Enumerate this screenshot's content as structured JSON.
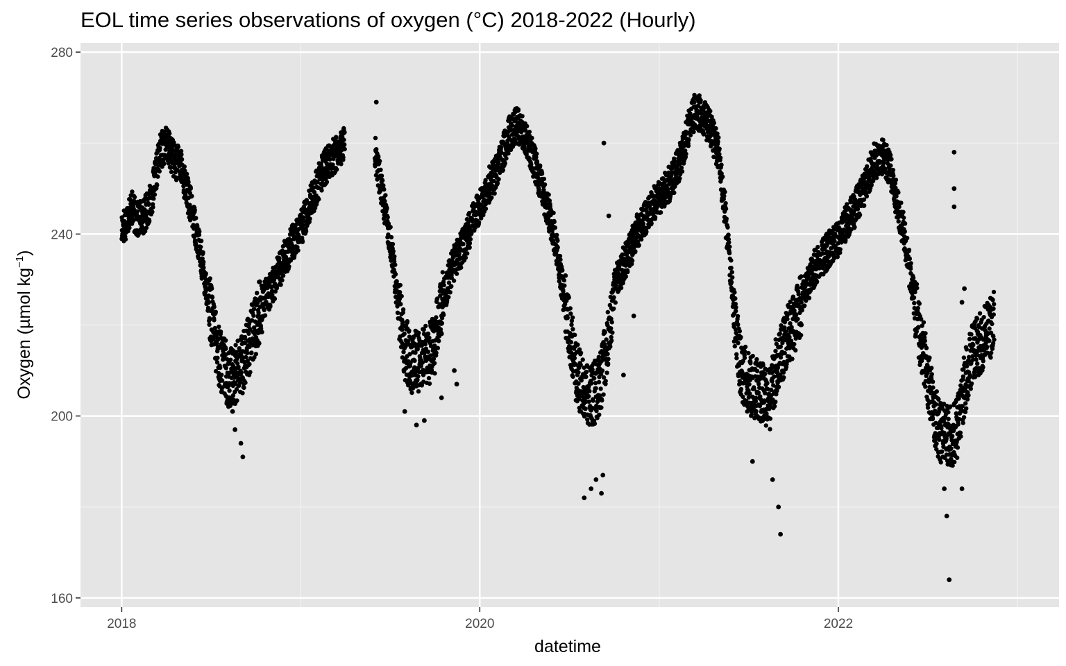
{
  "chart_data": {
    "type": "scatter",
    "title": "EOL time series observations of oxygen (°C) 2018-2022 (Hourly)",
    "xlabel": "datetime",
    "ylabel": "Oxygen (µmol kg",
    "ylabel_superscript": "−1",
    "ylabel_suffix": ")",
    "x_scale": "date",
    "xlim": [
      "2017-10-09",
      "2023-03-27"
    ],
    "ylim": [
      158,
      282
    ],
    "x_ticks": [
      "2018-01-01",
      "2020-01-01",
      "2022-01-01"
    ],
    "x_tick_labels": [
      "2018",
      "2020",
      "2022"
    ],
    "x_minor_ticks": [
      "2019-01-01",
      "2021-01-01",
      "2023-01-01"
    ],
    "y_ticks": [
      160,
      200,
      240,
      280
    ],
    "y_tick_labels": [
      "160",
      "200",
      "240",
      "280"
    ],
    "y_minor_ticks": [
      180,
      220,
      260
    ],
    "grid": true,
    "background": "#e5e5e5",
    "point_color": "#000000",
    "legend": "none",
    "series": [
      {
        "values": [
          [
            "2018-01-01",
            241.0
          ],
          [
            "2018-01-10",
            243.0
          ],
          [
            "2018-01-20",
            246.0
          ],
          [
            "2018-02-01",
            243.0
          ],
          [
            "2018-02-15",
            244.0
          ],
          [
            "2018-03-01",
            247.0
          ],
          [
            "2018-03-10",
            252.0
          ],
          [
            "2018-03-20",
            258.0
          ],
          [
            "2018-04-01",
            260.0
          ],
          [
            "2018-04-10",
            258.0
          ],
          [
            "2018-04-20",
            256.0
          ],
          [
            "2018-05-01",
            255.0
          ],
          [
            "2018-05-10",
            251.0
          ],
          [
            "2018-05-20",
            247.0
          ],
          [
            "2018-06-01",
            241.0
          ],
          [
            "2018-06-15",
            233.0
          ],
          [
            "2018-07-01",
            223.0
          ],
          [
            "2018-07-15",
            214.0
          ],
          [
            "2018-08-01",
            210.0
          ],
          [
            "2018-08-10",
            208.0
          ],
          [
            "2018-08-20",
            209.0
          ],
          [
            "2018-09-01",
            211.0
          ],
          [
            "2018-09-15",
            215.0
          ],
          [
            "2018-10-01",
            220.0
          ],
          [
            "2018-10-15",
            225.0
          ],
          [
            "2018-11-01",
            228.0
          ],
          [
            "2018-11-15",
            231.0
          ],
          [
            "2018-12-01",
            235.0
          ],
          [
            "2018-12-15",
            238.0
          ],
          [
            "2019-01-01",
            241.0
          ],
          [
            "2019-01-15",
            245.0
          ],
          [
            "2019-02-01",
            250.0
          ],
          [
            "2019-02-15",
            254.0
          ],
          [
            "2019-03-01",
            256.0
          ],
          [
            "2019-03-15",
            258.0
          ],
          [
            "2019-04-01",
            260.0
          ],
          [
            "2019-06-01",
            258.0
          ],
          [
            "2019-06-15",
            250.0
          ],
          [
            "2019-07-01",
            240.0
          ],
          [
            "2019-07-15",
            228.0
          ],
          [
            "2019-08-01",
            215.0
          ],
          [
            "2019-08-15",
            212.0
          ],
          [
            "2019-09-01",
            212.0
          ],
          [
            "2019-09-15",
            213.0
          ],
          [
            "2019-10-01",
            216.0
          ],
          [
            "2019-10-15",
            224.0
          ],
          [
            "2019-11-01",
            231.0
          ],
          [
            "2019-11-15",
            235.0
          ],
          [
            "2019-12-01",
            238.0
          ],
          [
            "2019-12-15",
            242.0
          ],
          [
            "2020-01-01",
            246.0
          ],
          [
            "2020-01-15",
            250.0
          ],
          [
            "2020-02-01",
            253.0
          ],
          [
            "2020-02-15",
            257.0
          ],
          [
            "2020-03-01",
            262.0
          ],
          [
            "2020-03-15",
            264.0
          ],
          [
            "2020-04-01",
            262.0
          ],
          [
            "2020-04-15",
            258.0
          ],
          [
            "2020-05-01",
            252.0
          ],
          [
            "2020-05-15",
            247.0
          ],
          [
            "2020-06-01",
            240.0
          ],
          [
            "2020-06-15",
            230.0
          ],
          [
            "2020-07-01",
            220.0
          ],
          [
            "2020-07-15",
            210.0
          ],
          [
            "2020-08-01",
            205.0
          ],
          [
            "2020-08-15",
            204.0
          ],
          [
            "2020-09-01",
            207.0
          ],
          [
            "2020-09-15",
            214.0
          ],
          [
            "2020-10-01",
            228.0
          ],
          [
            "2020-10-15",
            232.0
          ],
          [
            "2020-11-01",
            236.0
          ],
          [
            "2020-11-15",
            240.0
          ],
          [
            "2020-12-01",
            243.0
          ],
          [
            "2020-12-15",
            246.0
          ],
          [
            "2021-01-01",
            248.0
          ],
          [
            "2021-01-15",
            250.0
          ],
          [
            "2021-02-01",
            253.0
          ],
          [
            "2021-02-15",
            257.0
          ],
          [
            "2021-03-01",
            263.0
          ],
          [
            "2021-03-15",
            267.0
          ],
          [
            "2021-04-01",
            266.0
          ],
          [
            "2021-04-15",
            263.0
          ],
          [
            "2021-05-01",
            258.0
          ],
          [
            "2021-05-15",
            245.0
          ],
          [
            "2021-06-01",
            225.0
          ],
          [
            "2021-06-15",
            211.0
          ],
          [
            "2021-07-01",
            207.0
          ],
          [
            "2021-07-15",
            206.0
          ],
          [
            "2021-08-01",
            205.0
          ],
          [
            "2021-08-15",
            204.0
          ],
          [
            "2021-09-01",
            213.0
          ],
          [
            "2021-09-15",
            216.0
          ],
          [
            "2021-10-01",
            220.0
          ],
          [
            "2021-10-15",
            224.0
          ],
          [
            "2021-11-01",
            229.0
          ],
          [
            "2021-11-15",
            233.0
          ],
          [
            "2021-12-01",
            235.0
          ],
          [
            "2021-12-15",
            237.0
          ],
          [
            "2022-01-01",
            239.0
          ],
          [
            "2022-01-15",
            242.0
          ],
          [
            "2022-02-01",
            245.0
          ],
          [
            "2022-02-15",
            248.0
          ],
          [
            "2022-03-01",
            252.0
          ],
          [
            "2022-03-15",
            256.0
          ],
          [
            "2022-04-01",
            257.0
          ],
          [
            "2022-04-15",
            255.0
          ],
          [
            "2022-05-01",
            247.0
          ],
          [
            "2022-05-15",
            240.0
          ],
          [
            "2022-06-01",
            228.0
          ],
          [
            "2022-06-15",
            219.0
          ],
          [
            "2022-07-01",
            210.0
          ],
          [
            "2022-07-15",
            200.0
          ],
          [
            "2022-08-01",
            196.0
          ],
          [
            "2022-08-15",
            195.0
          ],
          [
            "2022-09-01",
            197.0
          ],
          [
            "2022-09-15",
            207.0
          ],
          [
            "2022-10-01",
            213.0
          ],
          [
            "2022-10-15",
            216.0
          ],
          [
            "2022-11-01",
            218.0
          ],
          [
            "2022-11-15",
            221.0
          ]
        ]
      }
    ],
    "outliers": [
      [
        "2018-08-15",
        201.0
      ],
      [
        "2018-08-20",
        197.0
      ],
      [
        "2018-09-05",
        191.0
      ],
      [
        "2018-09-01",
        194.0
      ],
      [
        "2019-06-04",
        269.0
      ],
      [
        "2019-08-01",
        201.0
      ],
      [
        "2019-08-25",
        198.0
      ],
      [
        "2019-09-10",
        199.0
      ],
      [
        "2019-10-15",
        204.0
      ],
      [
        "2019-11-10",
        210.0
      ],
      [
        "2019-11-15",
        207.0
      ],
      [
        "2020-08-01",
        182.0
      ],
      [
        "2020-08-15",
        184.0
      ],
      [
        "2020-08-25",
        186.0
      ],
      [
        "2020-09-05",
        183.0
      ],
      [
        "2020-09-08",
        187.0
      ],
      [
        "2020-09-10",
        260.0
      ],
      [
        "2020-09-20",
        244.0
      ],
      [
        "2020-10-20",
        209.0
      ],
      [
        "2020-11-10",
        222.0
      ],
      [
        "2021-09-01",
        180.0
      ],
      [
        "2021-09-05",
        174.0
      ],
      [
        "2021-08-20",
        186.0
      ],
      [
        "2021-07-10",
        190.0
      ],
      [
        "2022-08-10",
        178.0
      ],
      [
        "2022-08-15",
        164.0
      ],
      [
        "2022-08-05",
        184.0
      ],
      [
        "2022-09-10",
        184.0
      ],
      [
        "2022-08-25",
        258.0
      ],
      [
        "2022-08-25",
        250.0
      ],
      [
        "2022-08-25",
        246.0
      ],
      [
        "2022-09-10",
        225.0
      ],
      [
        "2022-09-15",
        228.0
      ]
    ]
  }
}
